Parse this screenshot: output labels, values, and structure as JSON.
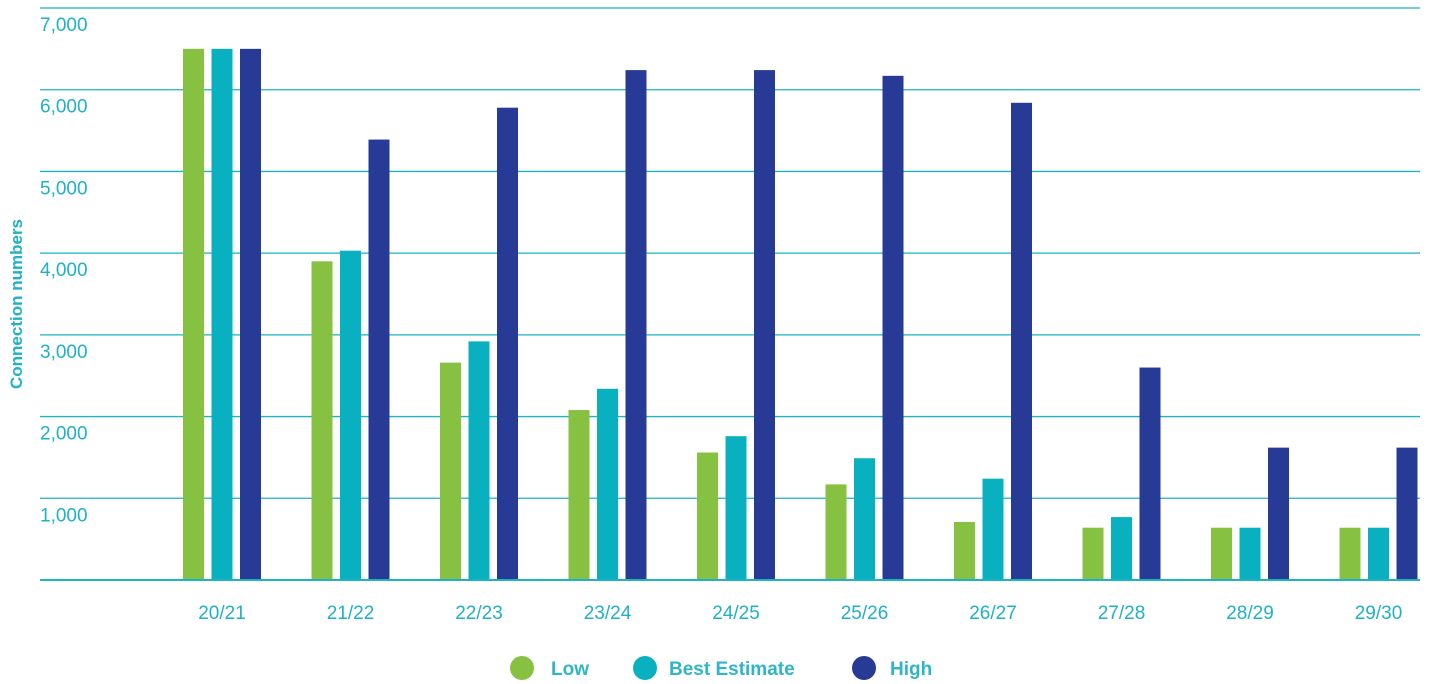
{
  "chart_data": {
    "type": "bar",
    "title": "",
    "xlabel": "",
    "ylabel": "Connection numbers",
    "ylim": [
      0,
      7000
    ],
    "yticks": [
      1000,
      2000,
      3000,
      4000,
      5000,
      6000,
      7000
    ],
    "ytick_labels": [
      "1,000",
      "2,000",
      "3,000",
      "4,000",
      "5,000",
      "6,000",
      "7,000"
    ],
    "grid": true,
    "legend_position": "bottom-center",
    "categories": [
      "20/21",
      "21/22",
      "22/23",
      "23/24",
      "24/25",
      "25/26",
      "26/27",
      "27/28",
      "28/29",
      "29/30"
    ],
    "series": [
      {
        "name": "Low",
        "color": "#86c142",
        "values": [
          6500,
          3900,
          2660,
          2080,
          1560,
          1170,
          710,
          640,
          640,
          640
        ]
      },
      {
        "name": "Best Estimate",
        "color": "#09b1c0",
        "values": [
          6500,
          4030,
          2920,
          2340,
          1760,
          1490,
          1240,
          770,
          640,
          640
        ]
      },
      {
        "name": "High",
        "color": "#273a96",
        "values": [
          6500,
          5390,
          5780,
          6240,
          6240,
          6170,
          5840,
          2600,
          1620,
          1620
        ]
      }
    ]
  }
}
